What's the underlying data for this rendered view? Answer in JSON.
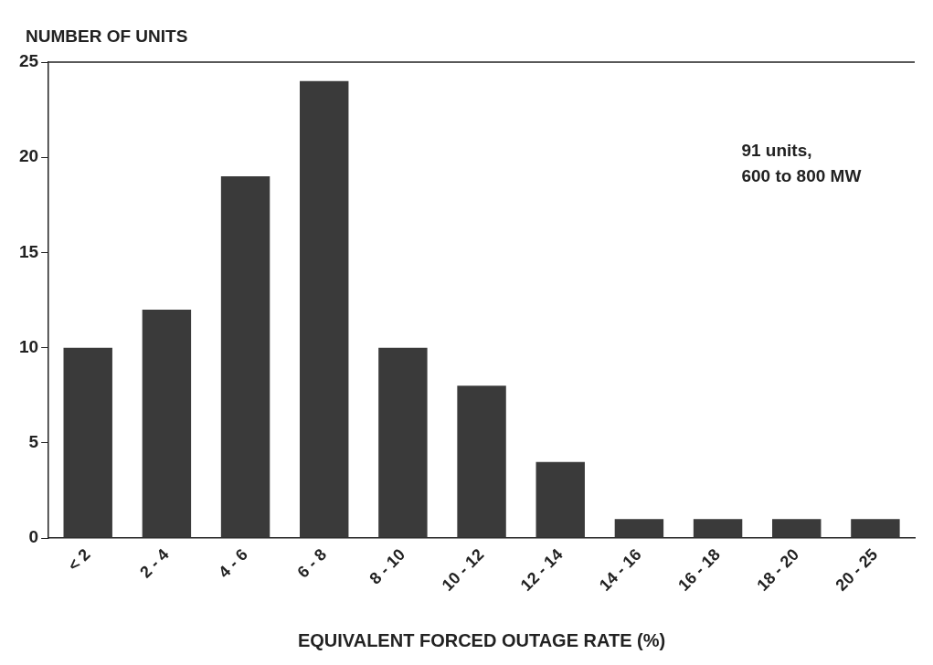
{
  "chart_data": {
    "type": "bar",
    "ylabel": "NUMBER OF UNITS",
    "xlabel": "EQUIVALENT FORCED OUTAGE RATE (%)",
    "categories": [
      "< 2",
      "2 - 4",
      "4 - 6",
      "6 - 8",
      "8 - 10",
      "10 - 12",
      "12 - 14",
      "14 - 16",
      "16 - 18",
      "18 - 20",
      "20 - 25"
    ],
    "values": [
      10,
      12,
      19,
      24,
      10,
      8,
      4,
      1,
      1,
      1,
      1
    ],
    "color": "#3a3a3a",
    "ylim": [
      0,
      25
    ],
    "yticks": [
      0,
      5,
      10,
      15,
      20,
      25
    ],
    "grid": false,
    "legend": false,
    "annotations": [
      "91 units,\n600 to 800 MW"
    ]
  }
}
